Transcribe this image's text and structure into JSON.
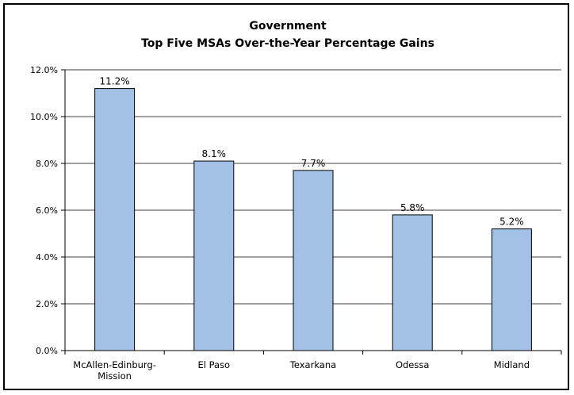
{
  "chart_data": {
    "type": "bar",
    "title": "Government",
    "subtitle": "Top Five MSAs Over-the-Year Percentage Gains",
    "xlabel": "",
    "ylabel": "",
    "categories": [
      "McAllen-Edinburg-Mission",
      "El Paso",
      "Texarkana",
      "Odessa",
      "Midland"
    ],
    "category_lines": [
      [
        "McAllen-Edinburg-",
        "Mission"
      ],
      [
        "El Paso"
      ],
      [
        "Texarkana"
      ],
      [
        "Odessa"
      ],
      [
        "Midland"
      ]
    ],
    "values": [
      11.2,
      8.1,
      7.7,
      5.8,
      5.2
    ],
    "data_labels": [
      "11.2%",
      "8.1%",
      "7.7%",
      "5.8%",
      "5.2%"
    ],
    "ylim": [
      0,
      12
    ],
    "yticks": [
      0,
      2,
      4,
      6,
      8,
      10,
      12
    ],
    "ytick_labels": [
      "0.0%",
      "2.0%",
      "4.0%",
      "6.0%",
      "8.0%",
      "10.0%",
      "12.0%"
    ],
    "grid": true,
    "legend": "none",
    "colors": {
      "bar_fill": "#a3c1e6",
      "bar_stroke": "#000000",
      "grid": "#000000",
      "axis": "#000000"
    }
  }
}
